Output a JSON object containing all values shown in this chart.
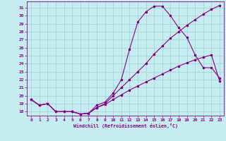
{
  "xlabel": "Windchill (Refroidissement éolien,°C)",
  "xlim": [
    -0.5,
    23.5
  ],
  "ylim": [
    17.5,
    31.8
  ],
  "xticks": [
    0,
    1,
    2,
    3,
    4,
    5,
    6,
    7,
    8,
    9,
    10,
    11,
    12,
    13,
    14,
    15,
    16,
    17,
    18,
    19,
    20,
    21,
    22,
    23
  ],
  "yticks": [
    18,
    19,
    20,
    21,
    22,
    23,
    24,
    25,
    26,
    27,
    28,
    29,
    30,
    31
  ],
  "bg_color": "#c5edf0",
  "grid_color": "#9eccd8",
  "line_color": "#880088",
  "curve1_x": [
    0,
    1,
    2,
    3,
    4,
    5,
    6,
    7,
    8,
    9,
    10,
    11,
    12,
    13,
    14,
    15,
    16,
    17,
    18,
    19,
    20,
    21,
    22,
    23
  ],
  "curve1_y": [
    19.5,
    18.8,
    19.0,
    18.0,
    18.0,
    18.0,
    17.7,
    17.8,
    18.8,
    19.2,
    20.3,
    22.0,
    25.8,
    29.2,
    30.5,
    31.2,
    31.2,
    30.0,
    28.5,
    27.3,
    25.1,
    23.5,
    23.5,
    22.2
  ],
  "curve2_x": [
    0,
    1,
    2,
    3,
    4,
    5,
    6,
    7,
    8,
    9,
    10,
    11,
    12,
    13,
    14,
    15,
    16,
    17,
    18,
    19,
    20,
    21,
    22,
    23
  ],
  "curve2_y": [
    19.5,
    18.8,
    19.0,
    18.0,
    18.0,
    18.0,
    17.7,
    17.8,
    18.5,
    18.9,
    19.5,
    20.1,
    20.7,
    21.2,
    21.7,
    22.2,
    22.7,
    23.2,
    23.7,
    24.1,
    24.5,
    24.8,
    25.1,
    21.8
  ],
  "curve3_x": [
    0,
    1,
    2,
    3,
    4,
    5,
    6,
    7,
    8,
    9,
    10,
    11,
    12,
    13,
    14,
    15,
    16,
    17,
    18,
    19,
    20,
    21,
    22,
    23
  ],
  "curve3_y": [
    19.5,
    18.8,
    19.0,
    18.0,
    18.0,
    18.0,
    17.7,
    17.8,
    18.5,
    19.0,
    20.0,
    21.0,
    22.0,
    23.0,
    24.0,
    25.2,
    26.2,
    27.2,
    28.0,
    28.8,
    29.5,
    30.2,
    30.8,
    31.3
  ]
}
